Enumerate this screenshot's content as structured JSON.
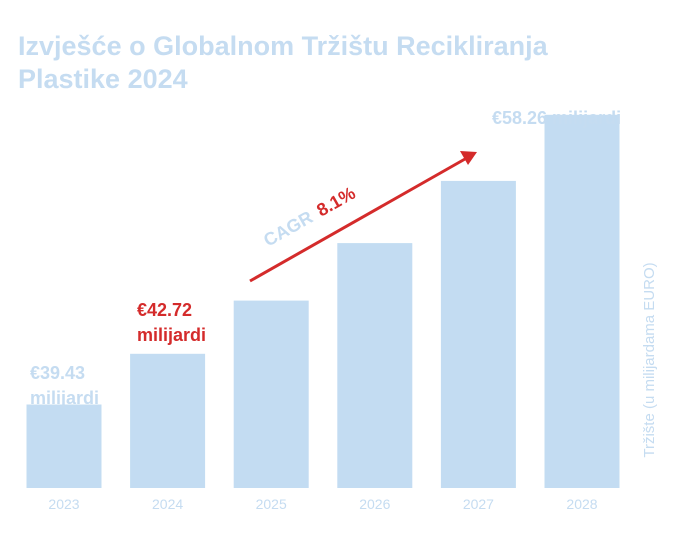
{
  "chart_data": {
    "type": "bar",
    "title_lines": [
      "Izvješće o Globalnom Tržištu Recikliranja",
      "Plastike 2024"
    ],
    "categories": [
      "2023",
      "2024",
      "2025",
      "2026",
      "2027",
      "2028"
    ],
    "values": [
      39.43,
      42.72,
      46.18,
      49.92,
      53.96,
      58.26
    ],
    "ylabel": "Tržište (u milijardama EURO)",
    "ylim": [
      34,
      60
    ],
    "grid": false,
    "data_labels": [
      {
        "category": "2023",
        "lines": [
          "€39.43",
          "milijardi"
        ],
        "emphasis": false
      },
      {
        "category": "2024",
        "lines": [
          "€42.72",
          "milijardi"
        ],
        "emphasis": true
      },
      {
        "category": "2028",
        "lines": [
          "€58.26 milijardi"
        ],
        "emphasis": false
      }
    ],
    "annotation": {
      "label": "CAGR",
      "value": "8.1%"
    }
  },
  "colors": {
    "bar": "#c3dcf2",
    "text_light": "#c5dcf1",
    "accent_red": "#d42b2b",
    "background": "#ffffff"
  }
}
